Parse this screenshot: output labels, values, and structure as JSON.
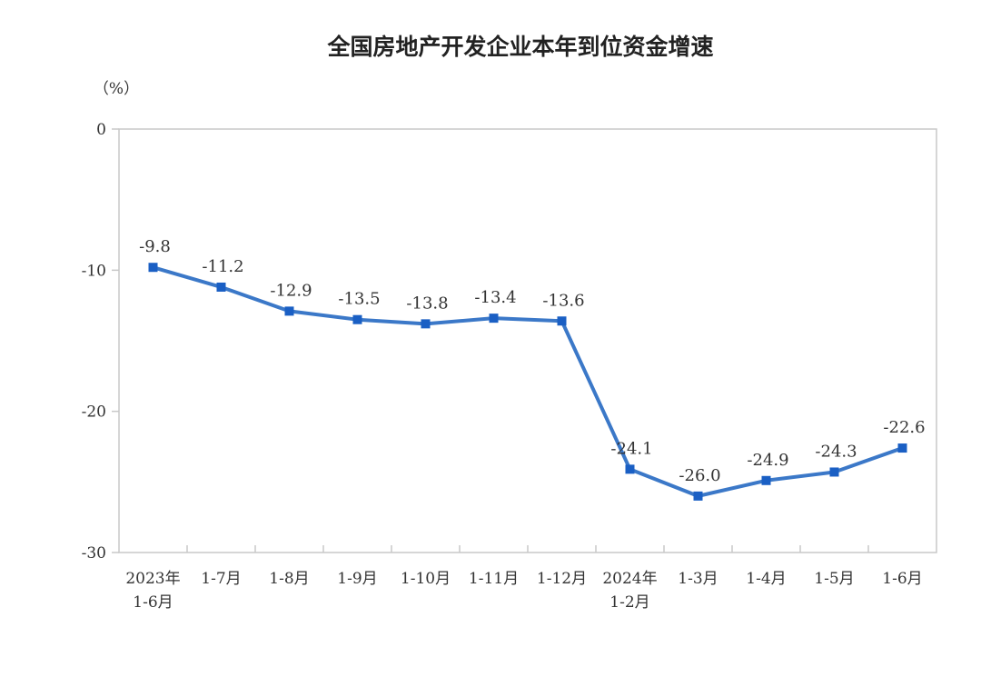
{
  "chart_data": {
    "type": "line",
    "title": "全国房地产开发企业本年到位资金增速",
    "ylabel": "（%）",
    "xlabel": "",
    "categories": [
      [
        "2023年",
        "1-6月"
      ],
      [
        "1-7月"
      ],
      [
        "1-8月"
      ],
      [
        "1-9月"
      ],
      [
        "1-10月"
      ],
      [
        "1-11月"
      ],
      [
        "1-12月"
      ],
      [
        "2024年",
        "1-2月"
      ],
      [
        "1-3月"
      ],
      [
        "1-4月"
      ],
      [
        "1-5月"
      ],
      [
        "1-6月"
      ]
    ],
    "values": [
      -9.8,
      -11.2,
      -12.9,
      -13.5,
      -13.8,
      -13.4,
      -13.6,
      -24.1,
      -26.0,
      -24.9,
      -24.3,
      -22.6
    ],
    "data_labels": [
      "-9.8",
      "-11.2",
      "-12.9",
      "-13.5",
      "-13.8",
      "-13.4",
      "-13.6",
      "-24.1",
      "-26.0",
      "-24.9",
      "-24.3",
      "-22.6"
    ],
    "ylim": [
      -30,
      0
    ],
    "yticks": [
      0,
      -10,
      -20,
      -30
    ],
    "grid": false,
    "line_color": "#3b78c8",
    "marker_color": "#1a5fc4",
    "marker": "square"
  }
}
